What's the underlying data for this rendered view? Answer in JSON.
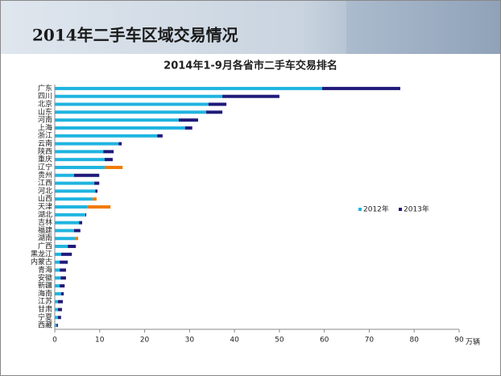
{
  "slide_title": "2014年二手车区域交易情况",
  "chart_data": {
    "type": "stacked_barh",
    "title": "2014年1-9月各省市二手车交易排名",
    "x_label": "万辆",
    "categories": [
      "广东",
      "四川",
      "北京",
      "山东",
      "河南",
      "上海",
      "浙江",
      "云南",
      "陕西",
      "重庆",
      "辽宁",
      "贵州",
      "江西",
      "河北",
      "山西",
      "天津",
      "湖北",
      "吉林",
      "福建",
      "湖南",
      "广西",
      "黑龙江",
      "内蒙古",
      "青海",
      "安徽",
      "新疆",
      "海南",
      "江苏",
      "甘肃",
      "宁夏",
      "西藏"
    ],
    "series": [
      {
        "name": "2012年",
        "color": "#1fb4e0",
        "values": [
          59.5,
          37.3,
          34.2,
          33.7,
          27.6,
          29.0,
          22.8,
          14.2,
          10.8,
          11.1,
          11.1,
          4.3,
          8.8,
          9.0,
          8.4,
          7.2,
          6.8,
          5.4,
          4.3,
          4.5,
          2.9,
          1.4,
          1.1,
          1.1,
          1.3,
          1.1,
          1.4,
          0.7,
          0.7,
          0.7,
          0.4
        ]
      },
      {
        "name": "2013年",
        "color": "#1f1a7a",
        "values": [
          17.4,
          12.7,
          4.0,
          3.6,
          4.3,
          1.6,
          1.2,
          0.7,
          2.3,
          1.8,
          4.0,
          5.6,
          1.1,
          0.5,
          0.9,
          5.2,
          0.2,
          0.7,
          1.4,
          0.7,
          1.8,
          2.4,
          1.8,
          1.4,
          1.2,
          1.1,
          0.6,
          1.1,
          0.9,
          0.7,
          0.3
        ],
        "point_colors": [
          "#1f1a7a",
          "#1f1a7a",
          "#1f1a7a",
          "#1f1a7a",
          "#1f1a7a",
          "#1f1a7a",
          "#1f1a7a",
          "#1f1a7a",
          "#1f1a7a",
          "#1f1a7a",
          "#f07b00",
          "#1f1a7a",
          "#1f1a7a",
          "#1f1a7a",
          "#f07b00",
          "#f07b00",
          "#1f1a7a",
          "#1f1a7a",
          "#1f1a7a",
          "#f07b00",
          "#1f1a7a",
          "#1f1a7a",
          "#1f1a7a",
          "#1f1a7a",
          "#1f1a7a",
          "#1f1a7a",
          "#1f1a7a",
          "#1f1a7a",
          "#1f1a7a",
          "#1f1a7a",
          "#1f1a7a"
        ]
      }
    ],
    "xlim": [
      0,
      90
    ],
    "xticks": [
      0,
      10,
      20,
      30,
      40,
      50,
      60,
      70,
      80,
      90
    ],
    "legend": "right"
  }
}
